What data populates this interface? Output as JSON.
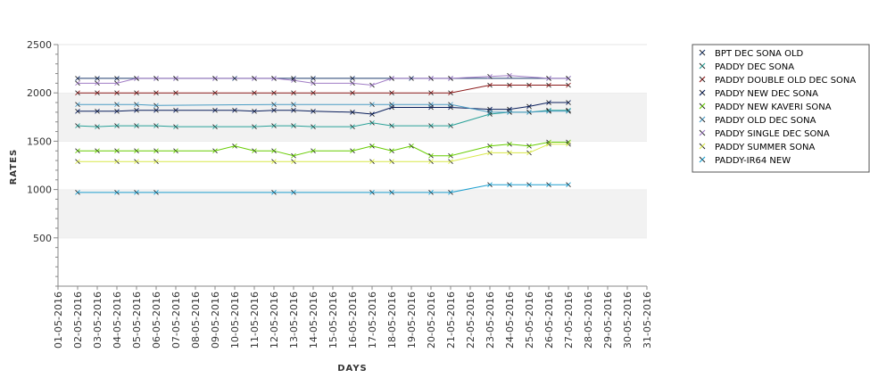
{
  "chart_data": {
    "type": "line",
    "title": "",
    "xlabel": "DAYS",
    "ylabel": "RATES",
    "ylim": [
      0,
      2500
    ],
    "yticks": [
      500,
      1000,
      1500,
      2000,
      2500
    ],
    "grid": "alternating horizontal bands",
    "legend_position": "right",
    "categories": [
      "01-05-2016",
      "02-05-2016",
      "03-05-2016",
      "04-05-2016",
      "05-05-2016",
      "06-05-2016",
      "07-05-2016",
      "08-05-2016",
      "09-05-2016",
      "10-05-2016",
      "11-05-2016",
      "12-05-2016",
      "13-05-2016",
      "14-05-2016",
      "15-05-2016",
      "16-05-2016",
      "17-05-2016",
      "18-05-2016",
      "19-05-2016",
      "20-05-2016",
      "21-05-2016",
      "22-05-2016",
      "23-05-2016",
      "24-05-2016",
      "25-05-2016",
      "26-05-2016",
      "27-05-2016",
      "28-05-2016",
      "29-05-2016",
      "30-05-2016",
      "31-05-2016"
    ],
    "series": [
      {
        "name": "BPT DEC SONA OLD",
        "color": "#1f3a6e",
        "values": [
          null,
          2150,
          2150,
          2150,
          2150,
          2150,
          2150,
          null,
          2150,
          2150,
          2150,
          2150,
          2150,
          2150,
          null,
          2150,
          null,
          2150,
          2150,
          2150,
          2150,
          null,
          null,
          null,
          null,
          2150,
          2150,
          null,
          null,
          null,
          null
        ]
      },
      {
        "name": "PADDY DEC SONA",
        "color": "#2aa198",
        "values": [
          null,
          1660,
          1650,
          1660,
          1660,
          1660,
          1650,
          null,
          1650,
          null,
          1650,
          1660,
          1660,
          1650,
          null,
          1650,
          1690,
          1660,
          null,
          1660,
          1660,
          null,
          1780,
          1800,
          1800,
          1820,
          1820,
          null,
          null,
          null,
          null
        ]
      },
      {
        "name": "PADDY DOUBLE OLD DEC SONA",
        "color": "#8b1a1a",
        "values": [
          null,
          2000,
          2000,
          2000,
          2000,
          2000,
          2000,
          null,
          2000,
          null,
          2000,
          2000,
          2000,
          2000,
          null,
          2000,
          null,
          2000,
          null,
          2000,
          2000,
          null,
          2080,
          2080,
          2080,
          2080,
          2080,
          null,
          null,
          null,
          null
        ]
      },
      {
        "name": "PADDY NEW DEC SONA",
        "color": "#0a1f5c",
        "values": [
          null,
          1810,
          1810,
          1810,
          1820,
          1820,
          1820,
          null,
          1820,
          1820,
          1810,
          1820,
          1820,
          1810,
          null,
          1800,
          1780,
          1850,
          null,
          1850,
          1850,
          null,
          1830,
          1830,
          1860,
          1900,
          1900,
          null,
          null,
          null,
          null
        ]
      },
      {
        "name": "PADDY NEW KAVERI SONA",
        "color": "#66cc00",
        "values": [
          null,
          1400,
          1400,
          1400,
          1400,
          1400,
          1400,
          null,
          1400,
          1450,
          1400,
          1400,
          1350,
          1400,
          null,
          1400,
          1450,
          1400,
          1450,
          1350,
          1350,
          null,
          1450,
          1470,
          1450,
          1490,
          1490,
          null,
          null,
          null,
          null
        ]
      },
      {
        "name": "PADDY OLD DEC SONA",
        "color": "#4a9cc4",
        "values": [
          null,
          1880,
          null,
          1880,
          1880,
          1870,
          null,
          null,
          null,
          null,
          null,
          1880,
          1880,
          null,
          null,
          null,
          1880,
          1880,
          null,
          1880,
          1880,
          null,
          1800,
          1800,
          1800,
          1810,
          1810,
          null,
          null,
          null,
          null
        ]
      },
      {
        "name": "PADDY SINGLE DEC SONA",
        "color": "#a07cc5",
        "values": [
          null,
          2100,
          2100,
          2100,
          2150,
          2150,
          2150,
          null,
          2150,
          null,
          2150,
          2150,
          2130,
          2100,
          null,
          2100,
          2080,
          2150,
          null,
          2150,
          2150,
          null,
          2170,
          2180,
          null,
          2150,
          2150,
          null,
          null,
          null,
          null
        ]
      },
      {
        "name": "PADDY SUMMER SONA",
        "color": "#d9e84a",
        "values": [
          null,
          1290,
          null,
          1290,
          1290,
          1290,
          null,
          null,
          null,
          null,
          null,
          1290,
          1290,
          null,
          null,
          null,
          1290,
          1290,
          null,
          1290,
          1290,
          null,
          1380,
          1380,
          1380,
          1470,
          1470,
          null,
          null,
          null,
          null
        ]
      },
      {
        "name": "PADDY-IR64 NEW",
        "color": "#1e9fcf",
        "values": [
          null,
          970,
          null,
          970,
          970,
          970,
          null,
          null,
          null,
          null,
          null,
          970,
          970,
          null,
          null,
          null,
          970,
          970,
          null,
          970,
          970,
          null,
          1050,
          1050,
          1050,
          1050,
          1050,
          null,
          null,
          null,
          null
        ]
      }
    ]
  }
}
